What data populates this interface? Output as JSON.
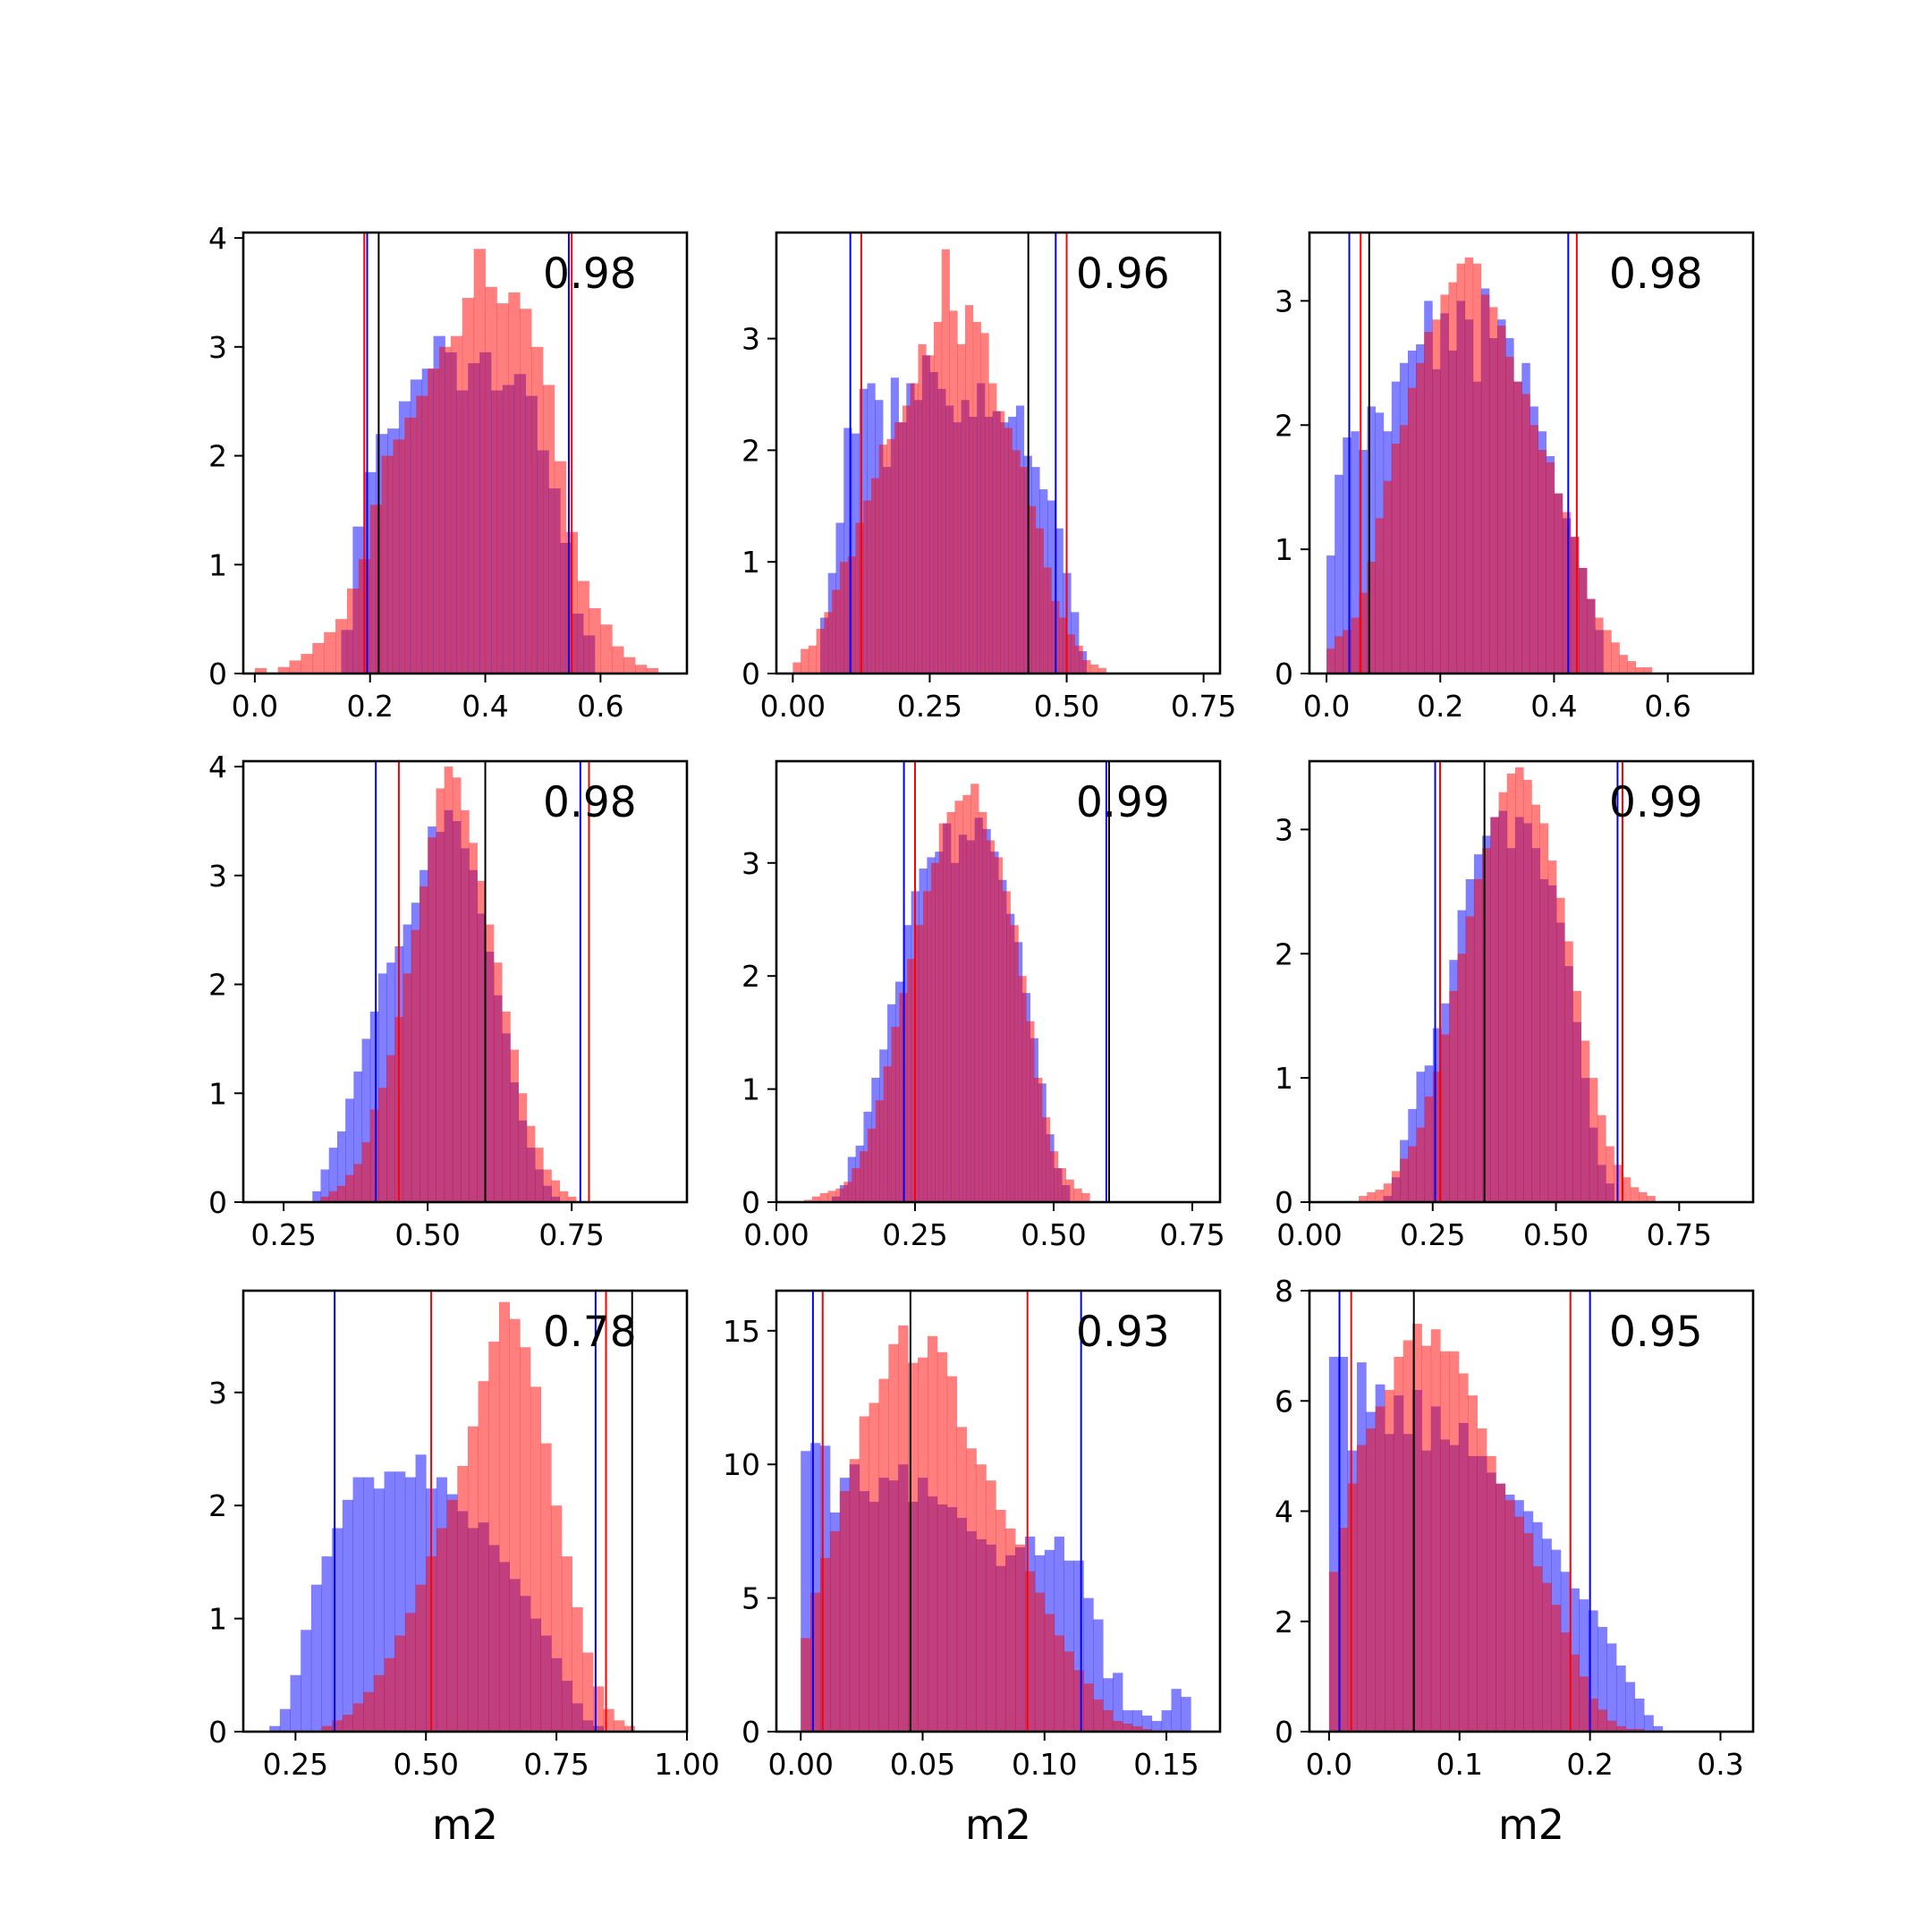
{
  "chart_data": [
    {
      "type": "histogram",
      "annotation": "0.98",
      "xlabel": "",
      "xlim": [
        -0.02,
        0.75
      ],
      "ylim": [
        0,
        4.05
      ],
      "xticks": [
        0.0,
        0.2,
        0.4,
        0.6
      ],
      "xtick_labels": [
        "0.0",
        "0.2",
        "0.4",
        "0.6"
      ],
      "yticks": [
        0,
        1,
        2,
        3,
        4
      ],
      "ytick_labels": [
        "0",
        "1",
        "2",
        "3",
        "4"
      ],
      "blue": {
        "start": 0.15,
        "width": 0.02,
        "values": [
          0.4,
          1.35,
          1.85,
          2.2,
          2.25,
          2.5,
          2.7,
          2.8,
          3.1,
          2.95,
          2.6,
          2.85,
          2.95,
          2.6,
          2.65,
          2.75,
          2.55,
          2.05,
          1.7,
          1.2,
          0.55,
          0.35
        ]
      },
      "red": {
        "start": 0.0,
        "width": 0.02,
        "values": [
          0.05,
          0.0,
          0.06,
          0.12,
          0.18,
          0.28,
          0.38,
          0.5,
          0.78,
          1.05,
          1.55,
          2.0,
          2.15,
          2.35,
          2.55,
          2.8,
          3.0,
          3.1,
          3.45,
          3.9,
          3.55,
          3.4,
          3.5,
          3.35,
          3.0,
          2.65,
          1.95,
          1.3,
          0.85,
          0.6,
          0.45,
          0.25,
          0.15,
          0.08,
          0.05
        ]
      },
      "vlines": {
        "blue": [
          0.195,
          0.545
        ],
        "red": [
          0.19,
          0.55
        ],
        "black": [
          0.215
        ]
      }
    },
    {
      "type": "histogram",
      "annotation": "0.96",
      "xlabel": "",
      "xlim": [
        -0.03,
        0.78
      ],
      "ylim": [
        0,
        3.95
      ],
      "xticks": [
        0.0,
        0.25,
        0.5,
        0.75
      ],
      "xtick_labels": [
        "0.00",
        "0.25",
        "0.50",
        "0.75"
      ],
      "yticks": [
        0,
        1,
        2,
        3
      ],
      "ytick_labels": [
        "0",
        "1",
        "2",
        "3"
      ],
      "blue": {
        "start": 0.05,
        "width": 0.0143,
        "values": [
          0.5,
          0.9,
          1.35,
          2.2,
          2.15,
          2.55,
          2.6,
          2.45,
          1.85,
          2.65,
          2.25,
          2.6,
          2.45,
          2.85,
          2.7,
          2.55,
          2.4,
          2.25,
          2.45,
          2.3,
          2.6,
          2.3,
          2.35,
          2.25,
          2.3,
          2.4,
          1.95,
          1.85,
          1.65,
          1.55,
          1.3,
          0.9,
          0.55,
          0.2
        ]
      },
      "red": {
        "start": 0.0,
        "width": 0.0143,
        "values": [
          0.1,
          0.22,
          0.25,
          0.4,
          0.55,
          0.75,
          1.0,
          1.05,
          1.35,
          1.55,
          1.75,
          2.05,
          2.1,
          2.25,
          2.4,
          2.6,
          2.95,
          2.85,
          3.15,
          3.8,
          3.25,
          2.95,
          3.3,
          3.15,
          3.05,
          2.6,
          2.35,
          2.2,
          2.0,
          1.85,
          1.5,
          1.3,
          0.95,
          0.65,
          0.5,
          0.35,
          0.25,
          0.12,
          0.08,
          0.05
        ]
      },
      "vlines": {
        "blue": [
          0.105,
          0.48
        ],
        "red": [
          0.125,
          0.5
        ],
        "black": [
          0.43
        ]
      }
    },
    {
      "type": "histogram",
      "annotation": "0.98",
      "xlabel": "",
      "xlim": [
        -0.03,
        0.75
      ],
      "ylim": [
        0,
        3.55
      ],
      "xticks": [
        0.0,
        0.2,
        0.4,
        0.6
      ],
      "xtick_labels": [
        "0.0",
        "0.2",
        "0.4",
        "0.6"
      ],
      "blue": {
        "start": 0.0,
        "width": 0.0143,
        "values": [
          0.95,
          1.6,
          1.9,
          1.95,
          1.8,
          2.15,
          2.1,
          1.95,
          2.35,
          2.5,
          2.6,
          2.65,
          3.0,
          2.45,
          2.9,
          2.6,
          3.0,
          2.85,
          2.35,
          3.1,
          2.7,
          2.85,
          2.7,
          2.35,
          2.5,
          2.15,
          1.95,
          1.75,
          1.45,
          1.25,
          1.1,
          0.85,
          0.6,
          0.35
        ]
      },
      "red": {
        "start": 0.0,
        "width": 0.0143,
        "values": [
          0.2,
          0.3,
          0.35,
          0.45,
          0.65,
          0.9,
          1.25,
          1.55,
          1.85,
          2.0,
          2.3,
          2.5,
          2.75,
          2.85,
          3.05,
          3.15,
          3.3,
          3.35,
          3.3,
          3.05,
          2.95,
          2.8,
          2.55,
          2.35,
          2.25,
          2.0,
          1.8,
          1.7,
          1.45,
          1.3,
          1.1,
          0.85,
          0.6,
          0.45,
          0.35,
          0.25,
          0.15,
          0.1,
          0.05,
          0.05
        ]
      },
      "vlines": {
        "blue": [
          0.04,
          0.425
        ],
        "red": [
          0.06,
          0.44
        ],
        "black": [
          0.075
        ]
      },
      "yticks": [
        0,
        1,
        2,
        3
      ],
      "ytick_labels": [
        "0",
        "1",
        "2",
        "3"
      ]
    },
    {
      "type": "histogram",
      "annotation": "0.98",
      "xlabel": "",
      "xlim": [
        0.18,
        0.95
      ],
      "ylim": [
        0,
        4.05
      ],
      "xticks": [
        0.25,
        0.5,
        0.75
      ],
      "xtick_labels": [
        "0.25",
        "0.50",
        "0.75"
      ],
      "yticks": [
        0,
        1,
        2,
        3,
        4
      ],
      "ytick_labels": [
        "0",
        "1",
        "2",
        "3",
        "4"
      ],
      "blue": {
        "start": 0.3,
        "width": 0.0143,
        "values": [
          0.1,
          0.3,
          0.5,
          0.65,
          0.95,
          1.2,
          1.5,
          1.75,
          2.1,
          2.2,
          2.35,
          2.55,
          2.75,
          3.05,
          3.45,
          3.4,
          3.6,
          3.5,
          3.25,
          3.05,
          2.65,
          2.3,
          1.9,
          1.55,
          1.1,
          0.75,
          0.5,
          0.3,
          0.15,
          0.05
        ]
      },
      "red": {
        "start": 0.3,
        "width": 0.0143,
        "values": [
          0.0,
          0.05,
          0.1,
          0.15,
          0.25,
          0.35,
          0.55,
          0.85,
          1.05,
          1.35,
          1.7,
          2.1,
          2.5,
          2.9,
          3.35,
          3.8,
          4.0,
          3.9,
          3.6,
          3.3,
          2.95,
          2.55,
          2.2,
          1.75,
          1.4,
          1.0,
          0.7,
          0.5,
          0.3,
          0.2,
          0.1,
          0.05
        ]
      },
      "vlines": {
        "blue": [
          0.41,
          0.765
        ],
        "red": [
          0.45,
          0.78
        ],
        "black": [
          0.6
        ]
      }
    },
    {
      "type": "histogram",
      "annotation": "0.99",
      "xlabel": "",
      "xlim": [
        0.0,
        0.8
      ],
      "ylim": [
        0,
        3.9
      ],
      "xticks": [
        0.0,
        0.25,
        0.5,
        0.75
      ],
      "xtick_labels": [
        "0.00",
        "0.25",
        "0.50",
        "0.75"
      ],
      "yticks": [
        0,
        1,
        2,
        3
      ],
      "ytick_labels": [
        "0",
        "1",
        "2",
        "3"
      ],
      "blue": {
        "start": 0.1,
        "width": 0.0143,
        "values": [
          0.05,
          0.15,
          0.4,
          0.5,
          0.8,
          1.1,
          1.35,
          1.75,
          1.95,
          2.45,
          2.75,
          2.95,
          3.05,
          3.1,
          3.35,
          3.0,
          3.25,
          3.2,
          3.4,
          3.3,
          3.1,
          2.85,
          2.55,
          2.3,
          1.85,
          1.45,
          1.05,
          0.6,
          0.3,
          0.15
        ]
      },
      "red": {
        "start": 0.05,
        "width": 0.0143,
        "values": [
          0.02,
          0.05,
          0.08,
          0.1,
          0.12,
          0.18,
          0.3,
          0.45,
          0.65,
          0.9,
          1.2,
          1.55,
          1.85,
          2.15,
          2.45,
          2.75,
          3.0,
          3.35,
          3.45,
          3.55,
          3.6,
          3.7,
          3.45,
          3.2,
          3.05,
          2.75,
          2.45,
          2.0,
          1.6,
          1.1,
          0.75,
          0.45,
          0.3,
          0.2,
          0.12,
          0.08
        ]
      },
      "vlines": {
        "blue": [
          0.23,
          0.595
        ],
        "red": [
          0.25,
          0.6
        ],
        "black": [
          0.6
        ]
      }
    },
    {
      "type": "histogram",
      "annotation": "0.99",
      "xlabel": "",
      "xlim": [
        0.0,
        0.9
      ],
      "ylim": [
        0,
        3.55
      ],
      "xticks": [
        0.0,
        0.25,
        0.5,
        0.75
      ],
      "xtick_labels": [
        "0.00",
        "0.25",
        "0.50",
        "0.75"
      ],
      "yticks": [
        0,
        1,
        2,
        3
      ],
      "ytick_labels": [
        "0",
        "1",
        "2",
        "3"
      ],
      "blue": {
        "start": 0.15,
        "width": 0.0167,
        "values": [
          0.05,
          0.2,
          0.5,
          0.75,
          1.05,
          1.1,
          1.4,
          1.6,
          1.95,
          2.35,
          2.6,
          2.8,
          2.95,
          3.1,
          3.15,
          2.85,
          3.1,
          3.05,
          2.85,
          2.6,
          2.55,
          2.25,
          1.9,
          1.45,
          1.0,
          0.6,
          0.3,
          0.15
        ]
      },
      "red": {
        "start": 0.1,
        "width": 0.0167,
        "values": [
          0.05,
          0.08,
          0.1,
          0.15,
          0.25,
          0.35,
          0.45,
          0.6,
          0.85,
          1.05,
          1.35,
          1.7,
          2.0,
          2.3,
          2.6,
          2.85,
          3.1,
          3.3,
          3.45,
          3.5,
          3.4,
          3.2,
          3.05,
          2.75,
          2.45,
          2.1,
          1.7,
          1.3,
          1.0,
          0.7,
          0.45,
          0.3,
          0.2,
          0.12,
          0.08,
          0.05
        ]
      },
      "vlines": {
        "blue": [
          0.255,
          0.625
        ],
        "red": [
          0.265,
          0.635
        ],
        "black": [
          0.355
        ]
      }
    },
    {
      "type": "histogram",
      "annotation": "0.78",
      "xlabel": "m2",
      "xlim": [
        0.15,
        1.0
      ],
      "ylim": [
        0,
        3.9
      ],
      "xticks": [
        0.25,
        0.5,
        0.75,
        1.0
      ],
      "xtick_labels": [
        "0.25",
        "0.50",
        "0.75",
        "1.00"
      ],
      "yticks": [
        0,
        1,
        2,
        3
      ],
      "ytick_labels": [
        "0",
        "1",
        "2",
        "3"
      ],
      "blue": {
        "start": 0.2,
        "width": 0.02,
        "values": [
          0.05,
          0.2,
          0.5,
          0.9,
          1.3,
          1.55,
          1.8,
          2.05,
          2.25,
          2.25,
          2.15,
          2.3,
          2.3,
          2.25,
          2.45,
          2.15,
          2.25,
          2.1,
          1.95,
          1.8,
          1.85,
          1.65,
          1.5,
          1.35,
          1.2,
          1.0,
          0.85,
          0.65,
          0.45,
          0.25,
          0.1,
          0.05
        ]
      },
      "red": {
        "start": 0.3,
        "width": 0.02,
        "values": [
          0.05,
          0.1,
          0.15,
          0.25,
          0.35,
          0.5,
          0.65,
          0.85,
          1.05,
          1.3,
          1.55,
          1.8,
          2.05,
          2.35,
          2.7,
          3.1,
          3.45,
          3.8,
          3.65,
          3.4,
          3.05,
          2.55,
          2.0,
          1.55,
          1.1,
          0.7,
          0.4,
          0.2,
          0.1,
          0.05
        ]
      },
      "vlines": {
        "blue": [
          0.325,
          0.825
        ],
        "red": [
          0.51,
          0.845
        ],
        "black": [
          0.895
        ]
      }
    },
    {
      "type": "histogram",
      "annotation": "0.93",
      "xlabel": "m2",
      "xlim": [
        -0.01,
        0.172
      ],
      "ylim": [
        0,
        16.5
      ],
      "xticks": [
        0.0,
        0.05,
        0.1,
        0.15
      ],
      "xtick_labels": [
        "0.00",
        "0.05",
        "0.10",
        "0.15"
      ],
      "yticks": [
        0,
        5,
        10,
        15
      ],
      "ytick_labels": [
        "0",
        "5",
        "10",
        "15"
      ],
      "blue": {
        "start": 0.0,
        "width": 0.004,
        "values": [
          10.5,
          10.8,
          10.7,
          8.2,
          9.5,
          10.0,
          9.0,
          8.6,
          9.5,
          9.4,
          10.0,
          8.6,
          9.5,
          8.8,
          8.5,
          8.4,
          8.0,
          7.5,
          7.2,
          7.0,
          6.2,
          6.6,
          6.9,
          7.3,
          6.6,
          6.8,
          7.3,
          6.4,
          6.4,
          5.0,
          4.2,
          2.0,
          2.2,
          0.8,
          0.8,
          0.6,
          0.4,
          0.8,
          1.6,
          1.3
        ]
      },
      "red": {
        "start": 0.0,
        "width": 0.004,
        "values": [
          3.5,
          5.2,
          6.5,
          7.5,
          9.0,
          10.2,
          11.8,
          12.3,
          13.2,
          14.5,
          15.2,
          13.8,
          14.0,
          14.8,
          14.2,
          13.3,
          11.4,
          10.6,
          10.0,
          9.4,
          8.3,
          7.6,
          7.0,
          6.0,
          5.2,
          4.4,
          3.6,
          3.0,
          2.3,
          1.8,
          1.2,
          0.8,
          0.4,
          0.3,
          0.2,
          0.1,
          0.05,
          0.0,
          0.0,
          0.0
        ]
      },
      "vlines": {
        "blue": [
          0.005,
          0.115
        ],
        "red": [
          0.009,
          0.093
        ],
        "black": [
          0.045
        ]
      }
    },
    {
      "type": "histogram",
      "annotation": "0.95",
      "xlabel": "m2",
      "xlim": [
        -0.015,
        0.325
      ],
      "ylim": [
        0,
        8.0
      ],
      "xticks": [
        0.0,
        0.1,
        0.2,
        0.3
      ],
      "xtick_labels": [
        "0.0",
        "0.1",
        "0.2",
        "0.3"
      ],
      "yticks": [
        0,
        2,
        4,
        6,
        8
      ],
      "ytick_labels": [
        "0",
        "2",
        "4",
        "6",
        "8"
      ],
      "blue": {
        "start": 0.0,
        "width": 0.0071,
        "values": [
          6.8,
          6.8,
          5.1,
          6.7,
          5.8,
          6.3,
          5.4,
          6.1,
          5.4,
          6.2,
          5.1,
          5.9,
          5.3,
          5.2,
          5.6,
          5.0,
          5.0,
          4.7,
          4.5,
          4.3,
          4.2,
          4.0,
          3.8,
          3.5,
          3.3,
          2.9,
          2.6,
          2.4,
          2.2,
          1.9,
          1.6,
          1.2,
          0.9,
          0.6,
          0.3,
          0.1
        ]
      },
      "red": {
        "start": 0.0,
        "width": 0.0071,
        "values": [
          2.9,
          3.7,
          4.5,
          5.2,
          5.5,
          5.9,
          6.2,
          6.8,
          7.1,
          7.4,
          7.0,
          7.3,
          6.9,
          6.9,
          6.5,
          6.1,
          5.5,
          5.0,
          4.5,
          4.2,
          3.9,
          3.6,
          3.0,
          2.7,
          2.3,
          1.8,
          1.4,
          1.0,
          0.6,
          0.4,
          0.2,
          0.1,
          0.05,
          0.05
        ]
      },
      "vlines": {
        "blue": [
          0.008,
          0.2
        ],
        "red": [
          0.017,
          0.185
        ],
        "black": [
          0.065
        ]
      }
    }
  ]
}
